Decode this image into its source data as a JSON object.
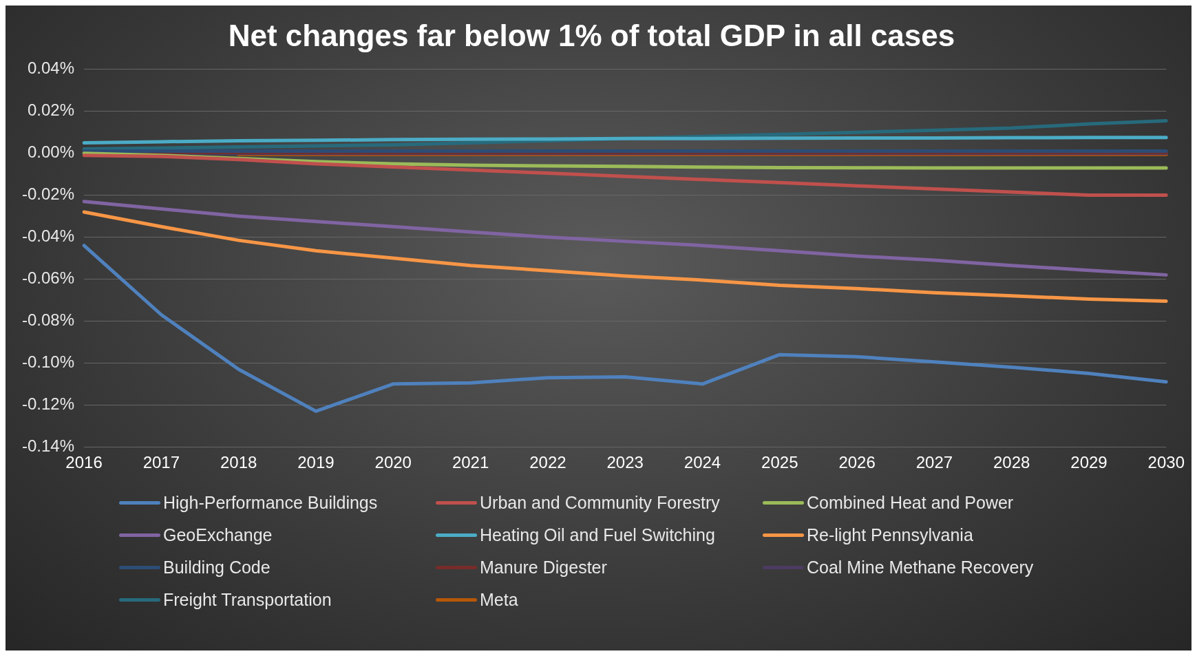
{
  "chart_data": {
    "type": "line",
    "title": "Net changes far below 1% of total GDP in all cases",
    "categories": [
      "2016",
      "2017",
      "2018",
      "2019",
      "2020",
      "2021",
      "2022",
      "2023",
      "2024",
      "2025",
      "2026",
      "2027",
      "2028",
      "2029",
      "2030"
    ],
    "series": [
      {
        "name": "High-Performance Buildings",
        "color": "#4f81bd",
        "values": [
          -0.044,
          -0.077,
          -0.103,
          -0.123,
          -0.11,
          -0.1095,
          -0.107,
          -0.1066,
          -0.11,
          -0.096,
          -0.097,
          -0.0995,
          -0.102,
          -0.105,
          -0.109
        ]
      },
      {
        "name": "Urban and Community Forestry",
        "color": "#c0504d",
        "values": [
          -0.001,
          -0.0015,
          -0.003,
          -0.005,
          -0.0065,
          -0.008,
          -0.0095,
          -0.011,
          -0.0125,
          -0.014,
          -0.0155,
          -0.017,
          -0.0185,
          -0.02,
          -0.02
        ]
      },
      {
        "name": "Combined Heat and Power",
        "color": "#9bbb59",
        "values": [
          0,
          -0.001,
          -0.0025,
          -0.004,
          -0.005,
          -0.0057,
          -0.006,
          -0.0063,
          -0.0066,
          -0.0068,
          -0.0069,
          -0.007,
          -0.007,
          -0.007,
          -0.007
        ]
      },
      {
        "name": "GeoExchange",
        "color": "#8064a2",
        "values": [
          -0.023,
          -0.0265,
          -0.03,
          -0.0325,
          -0.035,
          -0.0375,
          -0.04,
          -0.042,
          -0.044,
          -0.0465,
          -0.049,
          -0.051,
          -0.0535,
          -0.0558,
          -0.058
        ]
      },
      {
        "name": "Heating Oil and Fuel Switching",
        "color": "#4bacc6",
        "values": [
          0.005,
          0.0055,
          0.006,
          0.0062,
          0.0065,
          0.0067,
          0.0068,
          0.007,
          0.007,
          0.0072,
          0.0073,
          0.0073,
          0.0074,
          0.0075,
          0.0075
        ]
      },
      {
        "name": "Re-light Pennsylvania",
        "color": "#f79646",
        "values": [
          -0.028,
          -0.035,
          -0.0415,
          -0.0465,
          -0.05,
          -0.0535,
          -0.056,
          -0.0585,
          -0.0605,
          -0.063,
          -0.0645,
          -0.0665,
          -0.068,
          -0.0695,
          -0.0705
        ]
      },
      {
        "name": "Building Code",
        "color": "#2c4d75",
        "values": [
          0.001,
          0.001,
          0.001,
          0.001,
          0.001,
          0.001,
          0.001,
          0.001,
          0.001,
          0.001,
          0.001,
          0.001,
          0.001,
          0.001,
          0.001
        ]
      },
      {
        "name": "Manure Digester",
        "color": "#772c2a",
        "values": [
          0.0005,
          0.0005,
          0.0005,
          0.0005,
          0.0005,
          0.0005,
          0.0005,
          0.0005,
          0.0005,
          0.0005,
          0.0005,
          0.0005,
          0.0005,
          0.0005,
          0.0005
        ]
      },
      {
        "name": "Coal Mine Methane Recovery",
        "color": "#4d3b62",
        "values": [
          0,
          0,
          0,
          0,
          0,
          0,
          0,
          0,
          0,
          0,
          0,
          0,
          0,
          0,
          0
        ]
      },
      {
        "name": "Freight Transportation",
        "color": "#276a7c",
        "values": [
          0.002,
          0.0025,
          0.003,
          0.0035,
          0.004,
          0.005,
          0.006,
          0.007,
          0.008,
          0.009,
          0.01,
          0.011,
          0.012,
          0.014,
          0.0155
        ]
      },
      {
        "name": "Meta",
        "color": "#b65708",
        "values": [
          null,
          null,
          -0.0005,
          -0.0005,
          -0.0005,
          -0.0005,
          -0.0005,
          -0.0005,
          -0.0005,
          -0.0005,
          -0.0005,
          -0.0005,
          -0.0005,
          -0.0005,
          -0.0005
        ]
      }
    ],
    "ylim": [
      -0.14,
      0.04
    ],
    "yticks": [
      {
        "value": -0.14,
        "label": "-0.14%"
      },
      {
        "value": -0.12,
        "label": "-0.12%"
      },
      {
        "value": -0.1,
        "label": "-0.10%"
      },
      {
        "value": -0.08,
        "label": "-0.08%"
      },
      {
        "value": -0.06,
        "label": "-0.06%"
      },
      {
        "value": -0.04,
        "label": "-0.04%"
      },
      {
        "value": -0.02,
        "label": "-0.02%"
      },
      {
        "value": 0,
        "label": "0.00%"
      },
      {
        "value": 0.02,
        "label": "0.02%"
      },
      {
        "value": 0.04,
        "label": "0.04%"
      }
    ],
    "grid": "y",
    "legend": "bottom",
    "marker": "none",
    "line_style": "solid"
  }
}
